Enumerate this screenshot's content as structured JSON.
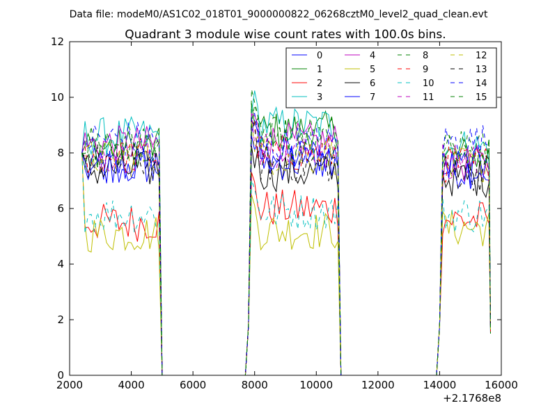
{
  "suptitle": "Data file: modeM0/AS1C02_018T01_9000000822_06268cztM0_level2_quad_clean.evt",
  "chart_data": {
    "type": "line",
    "title": "Quadrant 3 module wise count rates with 100.0s bins.",
    "xlabel": "",
    "ylabel": "",
    "x_offset_label": "+2.1768e8",
    "xlim": [
      2000,
      16000
    ],
    "ylim": [
      0,
      12
    ],
    "xticks": [
      2000,
      4000,
      6000,
      8000,
      10000,
      12000,
      14000,
      16000
    ],
    "yticks": [
      0,
      2,
      4,
      6,
      8,
      10,
      12
    ],
    "grid": false,
    "legend_position": "top-right",
    "legend_columns": 4,
    "segments": [
      {
        "start": 2500,
        "end": 4900
      },
      {
        "start": 7900,
        "end": 10700
      },
      {
        "start": 14100,
        "end": 15600
      }
    ],
    "gaps_zero": [
      {
        "start": 5000,
        "end": 7700
      },
      {
        "start": 10900,
        "end": 14000
      }
    ],
    "bin_width": 100,
    "series": [
      {
        "name": "0",
        "color": "#0000ff",
        "dash": "solid",
        "levels": [
          7.5,
          7.9,
          7.4
        ]
      },
      {
        "name": "1",
        "color": "#008000",
        "dash": "solid",
        "levels": [
          8.2,
          8.8,
          7.9
        ]
      },
      {
        "name": "2",
        "color": "#ff0000",
        "dash": "solid",
        "levels": [
          5.5,
          6.0,
          5.6
        ]
      },
      {
        "name": "3",
        "color": "#00bfbf",
        "dash": "solid",
        "levels": [
          8.6,
          9.0,
          8.2
        ]
      },
      {
        "name": "4",
        "color": "#bf00bf",
        "dash": "solid",
        "levels": [
          8.3,
          8.4,
          7.6
        ]
      },
      {
        "name": "5",
        "color": "#bfbf00",
        "dash": "solid",
        "levels": [
          5.1,
          5.2,
          5.3
        ]
      },
      {
        "name": "6",
        "color": "#000000",
        "dash": "solid",
        "levels": [
          7.4,
          7.3,
          7.1
        ]
      },
      {
        "name": "7",
        "color": "#0000ff",
        "dash": "solid",
        "levels": [
          7.6,
          7.7,
          7.5
        ]
      },
      {
        "name": "8",
        "color": "#008000",
        "dash": "dashed",
        "levels": [
          8.4,
          8.6,
          8.1
        ]
      },
      {
        "name": "9",
        "color": "#ff0000",
        "dash": "dashed",
        "levels": [
          7.9,
          8.0,
          7.6
        ]
      },
      {
        "name": "10",
        "color": "#00bfbf",
        "dash": "dashed",
        "levels": [
          5.8,
          5.9,
          5.8
        ]
      },
      {
        "name": "11",
        "color": "#bf00bf",
        "dash": "dashed",
        "levels": [
          8.0,
          8.1,
          7.7
        ]
      },
      {
        "name": "12",
        "color": "#bfbf00",
        "dash": "dashed",
        "levels": [
          7.8,
          7.9,
          7.5
        ]
      },
      {
        "name": "13",
        "color": "#000000",
        "dash": "dashed",
        "levels": [
          7.7,
          7.6,
          7.3
        ]
      },
      {
        "name": "14",
        "color": "#0000ff",
        "dash": "dashed",
        "levels": [
          8.5,
          8.3,
          8.4
        ]
      },
      {
        "name": "15",
        "color": "#008000",
        "dash": "dashed",
        "levels": [
          8.1,
          8.4,
          8.0
        ]
      }
    ]
  }
}
